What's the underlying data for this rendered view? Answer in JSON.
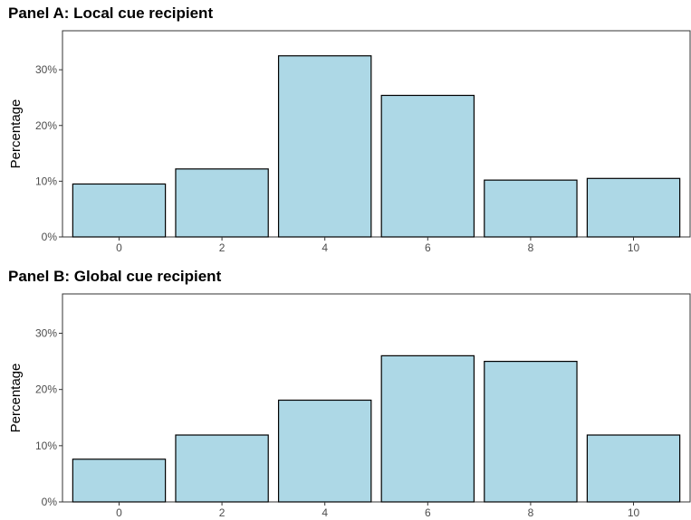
{
  "colors": {
    "bar_fill": "#add8e6",
    "bar_stroke": "#000000",
    "tick_text": "#4d4d4d"
  },
  "chart_data": [
    {
      "type": "bar",
      "title": "Panel A: Local cue recipient",
      "xlabel": "",
      "ylabel": "Percentage",
      "categories": [
        "0",
        "2",
        "4",
        "6",
        "8",
        "10"
      ],
      "values": [
        9.5,
        12.2,
        32.5,
        25.4,
        10.2,
        10.5
      ],
      "yticks": [
        "0%",
        "10%",
        "20%",
        "30%"
      ],
      "ylim": [
        0,
        37
      ],
      "grid": false,
      "legend": "none"
    },
    {
      "type": "bar",
      "title": "Panel B: Global cue recipient",
      "xlabel": "",
      "ylabel": "Percentage",
      "categories": [
        "0",
        "2",
        "4",
        "6",
        "8",
        "10"
      ],
      "values": [
        7.6,
        11.9,
        18.1,
        26.0,
        25.0,
        11.9
      ],
      "yticks": [
        "0%",
        "10%",
        "20%",
        "30%"
      ],
      "ylim": [
        0,
        37
      ],
      "grid": false,
      "legend": "none"
    }
  ]
}
